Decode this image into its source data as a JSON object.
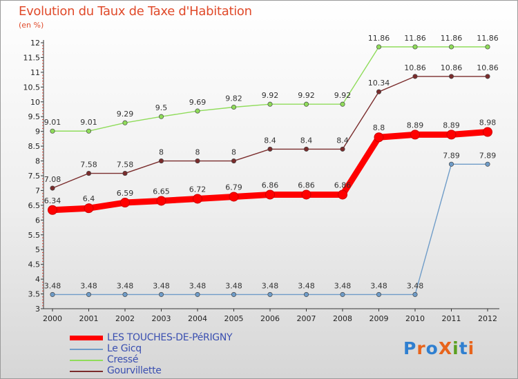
{
  "title": "Evolution du Taux de Taxe d'Habitation",
  "subtitle": "(en %)",
  "logo": "ProXiti",
  "chart_data": {
    "type": "line",
    "title": "Evolution du Taux de Taxe d'Habitation",
    "ylabel": "(en %)",
    "xlabel": "",
    "x": [
      "2000",
      "2001",
      "2002",
      "2003",
      "2004",
      "2005",
      "2006",
      "2007",
      "2008",
      "2009",
      "2010",
      "2011",
      "2012"
    ],
    "ylim": [
      3,
      12
    ],
    "yticks": [
      "3",
      "3.5",
      "4",
      "4.5",
      "5",
      "5.5",
      "6",
      "6.5",
      "7",
      "7.5",
      "8",
      "8.5",
      "9",
      "9.5",
      "10",
      "10.5",
      "11",
      "11.5",
      "12"
    ],
    "grid": false,
    "legend_position": "bottom-left",
    "series": [
      {
        "name": "LES TOUCHES-DE-PéRIGNY",
        "color": "#ff0000",
        "values": [
          6.34,
          6.4,
          6.59,
          6.65,
          6.72,
          6.79,
          6.86,
          6.86,
          6.86,
          8.8,
          8.89,
          8.89,
          8.98
        ],
        "labels": [
          "6.34",
          "6.4",
          "6.59",
          "6.65",
          "6.72",
          "6.79",
          "6.86",
          "6.86",
          "6.86",
          "8.8",
          "8.89",
          "8.89",
          "8.98"
        ]
      },
      {
        "name": "Le Gicq",
        "color": "#6f9cc8",
        "values": [
          3.48,
          3.48,
          3.48,
          3.48,
          3.48,
          3.48,
          3.48,
          3.48,
          3.48,
          3.48,
          3.48,
          7.89,
          7.89
        ],
        "labels": [
          "3.48",
          "3.48",
          "3.48",
          "3.48",
          "3.48",
          "3.48",
          "3.48",
          "3.48",
          "3.48",
          "3.48",
          "3.48",
          "7.89",
          "7.89"
        ]
      },
      {
        "name": "Cressé",
        "color": "#8fdc5a",
        "values": [
          9.01,
          9.01,
          9.29,
          9.5,
          9.69,
          9.82,
          9.92,
          9.92,
          9.92,
          11.86,
          11.86,
          11.86,
          11.86
        ],
        "labels": [
          "9.01",
          "9.01",
          "9.29",
          "9.5",
          "9.69",
          "9.82",
          "9.92",
          "9.92",
          "9.92",
          "11.86",
          "11.86",
          "11.86",
          "11.86"
        ]
      },
      {
        "name": "Gourvillette",
        "color": "#7a2c2c",
        "values": [
          7.08,
          7.58,
          7.58,
          8,
          8,
          8,
          8.4,
          8.4,
          8.4,
          10.34,
          10.86,
          10.86,
          10.86
        ],
        "labels": [
          "7.08",
          "7.58",
          "7.58",
          "8",
          "8",
          "8",
          "8.4",
          "8.4",
          "8.4",
          "10.34",
          "10.86",
          "10.86",
          "10.86"
        ]
      }
    ]
  }
}
